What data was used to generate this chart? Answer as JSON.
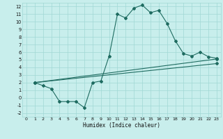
{
  "title": "",
  "xlabel": "Humidex (Indice chaleur)",
  "bg_color": "#c8eeec",
  "grid_color": "#a0d8d4",
  "line_color": "#1e6b60",
  "xlim": [
    -0.5,
    23.5
  ],
  "ylim": [
    -2.5,
    12.5
  ],
  "xticks": [
    0,
    1,
    2,
    3,
    4,
    5,
    6,
    7,
    8,
    9,
    10,
    11,
    12,
    13,
    14,
    15,
    16,
    17,
    18,
    19,
    20,
    21,
    22,
    23
  ],
  "yticks": [
    -2,
    -1,
    0,
    1,
    2,
    3,
    4,
    5,
    6,
    7,
    8,
    9,
    10,
    11,
    12
  ],
  "curve1_x": [
    1,
    2,
    3,
    4,
    5,
    6,
    7,
    8,
    9,
    10,
    11,
    12,
    13,
    14,
    15,
    16,
    17,
    18,
    19,
    20,
    21,
    22,
    23
  ],
  "curve1_y": [
    2.0,
    1.6,
    1.2,
    -0.5,
    -0.5,
    -0.5,
    -1.3,
    2.0,
    2.2,
    5.5,
    11.0,
    10.5,
    11.8,
    12.2,
    11.2,
    11.5,
    9.8,
    7.5,
    5.8,
    5.5,
    6.0,
    5.4,
    5.2
  ],
  "curve2_x": [
    1,
    23
  ],
  "curve2_y": [
    2.0,
    5.1
  ],
  "curve3_x": [
    1,
    23
  ],
  "curve3_y": [
    2.0,
    4.5
  ],
  "marker": "D",
  "marker_size": 2.0,
  "linewidth": 0.8,
  "tick_fontsize": 4.5,
  "xlabel_fontsize": 5.5
}
